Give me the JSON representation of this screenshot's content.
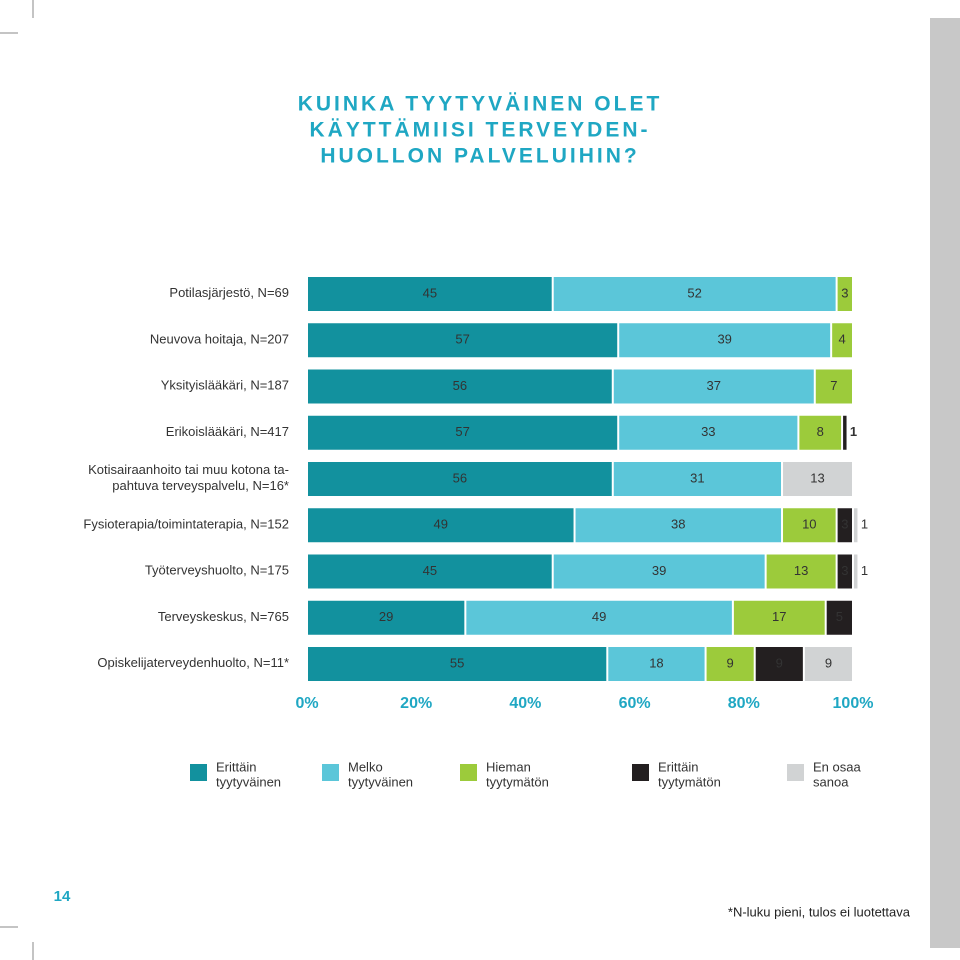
{
  "chart_data": {
    "type": "stacked-bar-horizontal",
    "title": [
      "KUINKA TYYTYVÄINEN OLET",
      "KÄYTTÄMIISI TERVEYDEN-",
      "HUOLLON PALVELUIHIN?"
    ],
    "categories": [
      "Potilasjärjestö, N=69",
      "Neuvova hoitaja, N=207",
      "Yksityislääkäri, N=187",
      "Erikoislääkäri, N=417",
      "Kotisairaanhoito tai muu kotona ta-\npahtuva terveyspalvelu, N=16*",
      "Fysioterapia/toimintaterapia, N=152",
      "Työterveyshuolto, N=175",
      "Terveyskeskus, N=765",
      "Opiskelijaterveydenhuolto, N=11*"
    ],
    "series": [
      {
        "name": "Erittäin\ntyytyväinen",
        "color": "#12919e",
        "values": [
          45,
          57,
          56,
          57,
          56,
          49,
          45,
          29,
          55
        ]
      },
      {
        "name": "Melko\ntyytyväinen",
        "color": "#5bc6d9",
        "values": [
          52,
          39,
          37,
          33,
          31,
          38,
          39,
          49,
          18
        ]
      },
      {
        "name": "Hieman\ntyytymätön",
        "color": "#9ccb3b",
        "values": [
          3,
          4,
          7,
          8,
          null,
          10,
          13,
          17,
          9
        ]
      },
      {
        "name": "Erittäin\ntyytymätön",
        "color": "#231f20",
        "values": [
          null,
          null,
          null,
          1,
          null,
          3,
          3,
          5,
          9
        ]
      },
      {
        "name": "En osaa\nsanoa",
        "color": "#d1d3d4",
        "values": [
          null,
          null,
          null,
          null,
          13,
          1,
          1,
          null,
          9
        ]
      }
    ],
    "xlim": [
      0,
      100
    ],
    "xticks": [
      {
        "value": 0,
        "label": "0%"
      },
      {
        "value": 20,
        "label": "20%"
      },
      {
        "value": 40,
        "label": "40%"
      },
      {
        "value": 60,
        "label": "60%"
      },
      {
        "value": 80,
        "label": "80%"
      },
      {
        "value": 100,
        "label": "100%"
      }
    ],
    "page_number": "14",
    "footnote": "*N-luku pieni, tulos ei luotettava"
  }
}
